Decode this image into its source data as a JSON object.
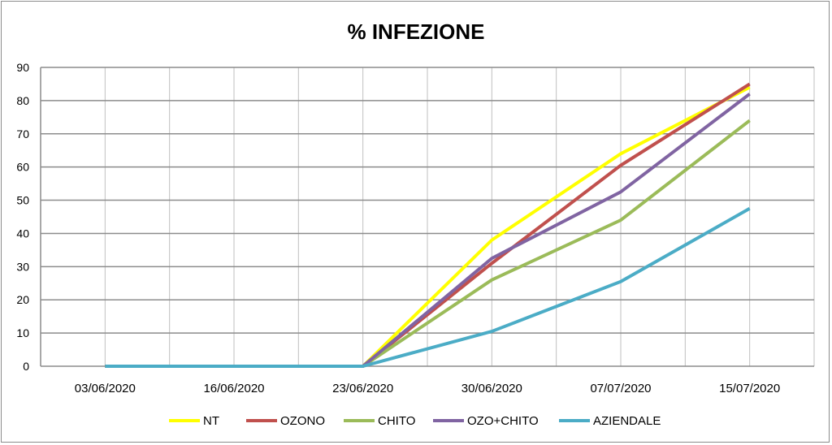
{
  "chart_data": {
    "type": "line",
    "title": "% INFEZIONE",
    "xlabel": "",
    "ylabel": "",
    "categories": [
      "03/06/2020",
      "16/06/2020",
      "23/06/2020",
      "30/06/2020",
      "07/07/2020",
      "15/07/2020"
    ],
    "ylim": [
      0,
      90
    ],
    "yticks": [
      0,
      10,
      20,
      30,
      40,
      50,
      60,
      70,
      80,
      90
    ],
    "grid": true,
    "legend_position": "bottom",
    "series": [
      {
        "name": "NT",
        "color": "#ffff00",
        "values": [
          0,
          0,
          0,
          38,
          64,
          84
        ]
      },
      {
        "name": "OZONO",
        "color": "#c0504d",
        "values": [
          0,
          0,
          0,
          31,
          60.5,
          85
        ]
      },
      {
        "name": "CHITO",
        "color": "#9bbb59",
        "values": [
          0,
          0,
          0,
          26,
          44,
          74
        ]
      },
      {
        "name": "OZO+CHITO",
        "color": "#8064a2",
        "values": [
          0,
          0,
          0,
          32.5,
          52.5,
          82
        ]
      },
      {
        "name": "AZIENDALE",
        "color": "#4bacc6",
        "values": [
          0,
          0,
          0,
          10.5,
          25.5,
          47.5
        ]
      }
    ]
  }
}
